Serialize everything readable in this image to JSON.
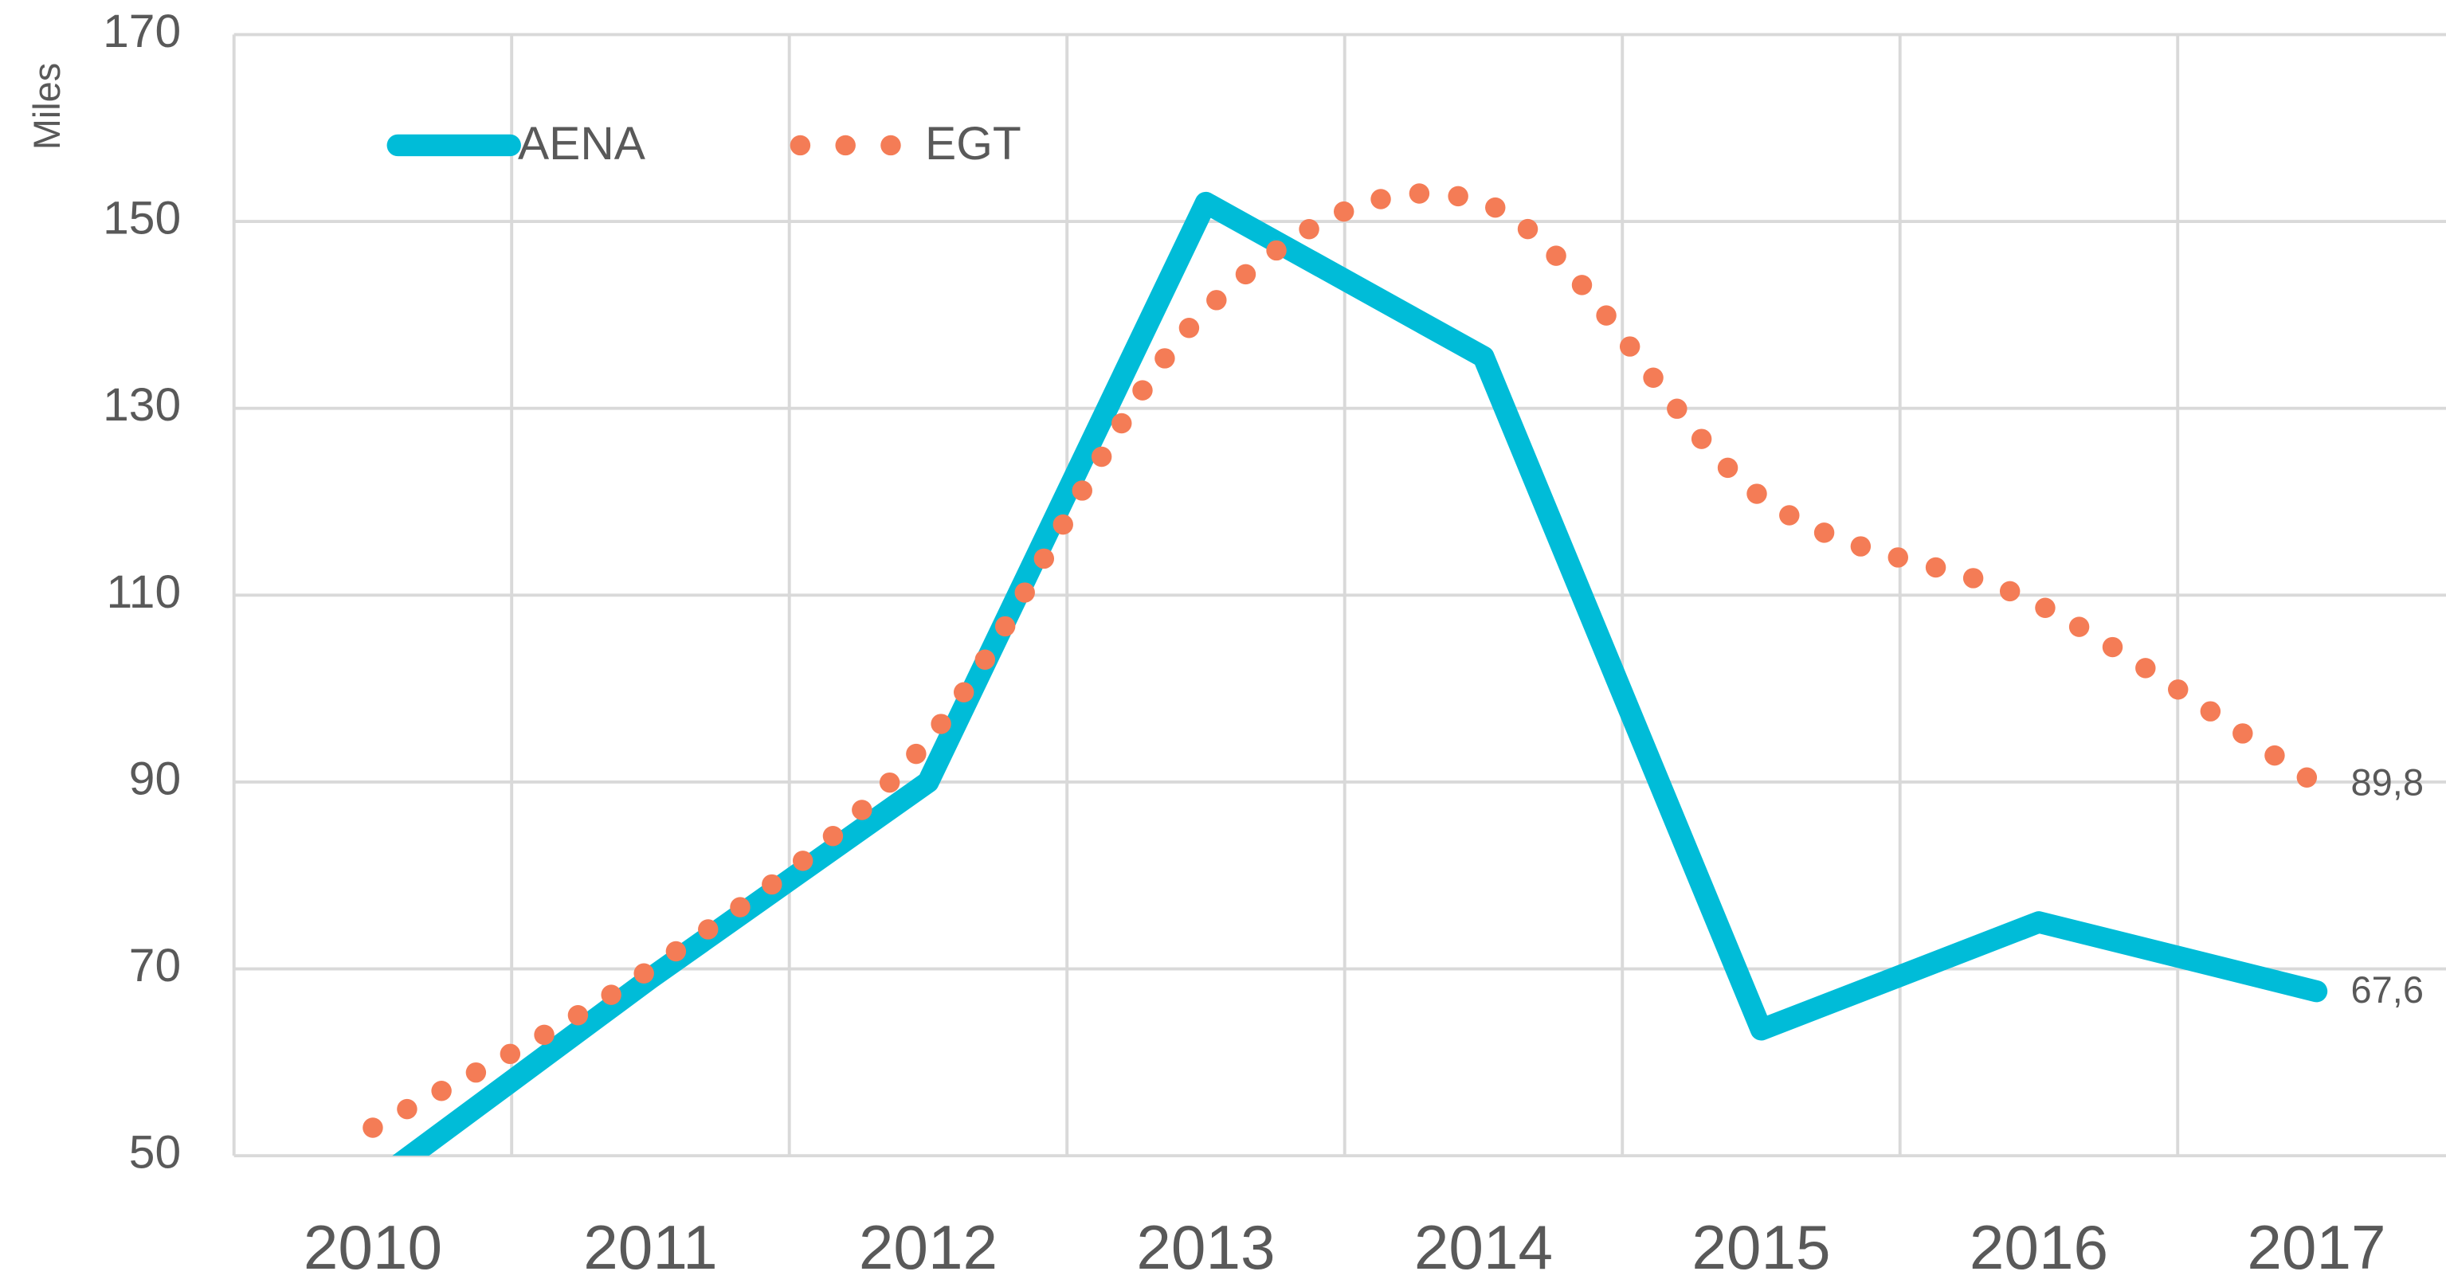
{
  "chart_data": {
    "type": "line",
    "y_axis_label": "Miles",
    "categories": [
      "2010",
      "2011",
      "2012",
      "2013",
      "2014",
      "2015",
      "2016",
      "2017"
    ],
    "series": [
      {
        "name": "AENA",
        "color": "#00bcd8",
        "style": "solid",
        "smooth": false,
        "values": [
          47,
          69,
          90,
          152,
          135.5,
          63.5,
          75,
          67.6
        ],
        "value_labels": [
          null,
          null,
          null,
          null,
          null,
          null,
          null,
          "67,6"
        ]
      },
      {
        "name": "EGT",
        "color": "#f47c56",
        "style": "dotted",
        "smooth": true,
        "values": [
          53,
          70,
          94.5,
          140.5,
          152,
          120.5,
          109,
          89.8
        ],
        "value_labels": [
          null,
          null,
          null,
          null,
          null,
          null,
          null,
          "89,8"
        ]
      }
    ],
    "ylim": [
      50,
      170
    ],
    "yticks": [
      50,
      70,
      90,
      110,
      130,
      150,
      170
    ],
    "grid": true,
    "legend": "upper left"
  }
}
